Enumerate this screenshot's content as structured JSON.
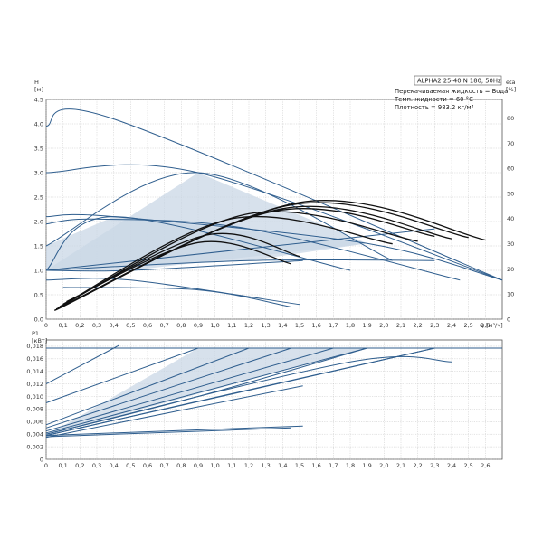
{
  "chart_data": [
    {
      "type": "line",
      "panel": "head",
      "ylabel": "H",
      "yunit": "[м]",
      "y2label": "eta",
      "y2unit": "[%]",
      "xlabel": "Q",
      "xunit": "[м³/ч]",
      "ylim": [
        0,
        4.5
      ],
      "y2lim": [
        0,
        87.5
      ],
      "xlim": [
        0,
        2.7
      ],
      "xticks": [
        0,
        0.1,
        0.2,
        0.3,
        0.4,
        0.5,
        0.6,
        0.7,
        0.8,
        0.9,
        1.0,
        1.1,
        1.2,
        1.3,
        1.4,
        1.5,
        1.6,
        1.7,
        1.8,
        1.9,
        2.0,
        2.1,
        2.2,
        2.3,
        2.4,
        2.5,
        2.6
      ],
      "xtick_labels": [
        "0",
        "0,1",
        "0,2",
        "0,3",
        "0,4",
        "0,5",
        "0,6",
        "0,7",
        "0,8",
        "0,9",
        "1,0",
        "1,1",
        "1,2",
        "1,3",
        "1,4",
        "1,5",
        "1,6",
        "1,7",
        "1,8",
        "1,9",
        "2,0",
        "2,1",
        "2,2",
        "2,3",
        "2,4",
        "2,5",
        "2,6"
      ],
      "yticks": [
        0,
        0.5,
        1.0,
        1.5,
        2.0,
        2.5,
        3.0,
        3.5,
        4.0,
        4.5
      ],
      "ytick_labels": [
        "0.0",
        "0.5",
        "1.0",
        "1.5",
        "2.0",
        "2.5",
        "3.0",
        "3.5",
        "4.0",
        "4.5"
      ],
      "y2ticks": [
        0,
        10,
        20,
        30,
        40,
        50,
        60,
        70,
        80
      ],
      "y2tick_labels": [
        "0",
        "10",
        "20",
        "30",
        "40",
        "50",
        "60",
        "70",
        "80"
      ],
      "grid": true,
      "info_box": {
        "title": "ALPHA2 25-40 N 180, 50Hz",
        "lines": [
          "Перекачиваемая жидкость = Вода",
          "Темп. жидкости = 60 °C",
          "Плотность = 983.2 кг/м³"
        ]
      },
      "shaded_regions": [
        {
          "x": [
            0,
            0.9,
            1.9,
            1.2,
            0
          ],
          "y": [
            1.0,
            3.0,
            1.55,
            1.2,
            1.0
          ]
        },
        {
          "x": [
            0,
            0.4,
            1.9,
            0.5,
            0
          ],
          "y": [
            1.5,
            2.1,
            1.55,
            1.0,
            1.0
          ]
        }
      ],
      "head_curves": [
        {
          "x": [
            0,
            0.4,
            2.7
          ],
          "y": [
            3.95,
            4.1,
            0.8
          ]
        },
        {
          "x": [
            0,
            0.9,
            2.7
          ],
          "y": [
            3.0,
            3.0,
            0.8
          ]
        },
        {
          "x": [
            0,
            0.4,
            1.9,
            2.7
          ],
          "y": [
            2.1,
            2.1,
            1.55,
            0.8
          ]
        },
        {
          "x": [
            0,
            0.3,
            1.2,
            2.45
          ],
          "y": [
            1.95,
            2.05,
            1.85,
            0.8
          ]
        },
        {
          "x": [
            0,
            0.9,
            2.05
          ],
          "y": [
            1.5,
            3.0,
            1.2
          ]
        },
        {
          "x": [
            0,
            0.4,
            1.8
          ],
          "y": [
            1.0,
            2.1,
            1.0
          ]
        },
        {
          "x": [
            0,
            1.2,
            2.3
          ],
          "y": [
            1.0,
            1.2,
            1.2
          ]
        },
        {
          "x": [
            0,
            2.3
          ],
          "y": [
            1.0,
            1.85
          ]
        },
        {
          "x": [
            0,
            0.5,
            1.52
          ],
          "y": [
            1.0,
            1.0,
            1.2
          ]
        },
        {
          "x": [
            0,
            0.5,
            1.5
          ],
          "y": [
            0.8,
            0.8,
            0.3
          ]
        },
        {
          "x": [
            0.1,
            0.9,
            1.45
          ],
          "y": [
            0.65,
            0.6,
            0.25
          ]
        }
      ],
      "efficiency_curves": [
        {
          "x": [
            0.05,
            1.5,
            2.6
          ],
          "y": [
            3.5,
            46.5,
            31.5
          ]
        },
        {
          "x": [
            0.05,
            1.45,
            2.5
          ],
          "y": [
            3.5,
            45.5,
            32.5
          ]
        },
        {
          "x": [
            0.06,
            1.4,
            2.4
          ],
          "y": [
            4,
            44,
            32
          ]
        },
        {
          "x": [
            0.06,
            1.35,
            2.3
          ],
          "y": [
            4,
            43,
            33
          ]
        },
        {
          "x": [
            0.07,
            1.2,
            2.2
          ],
          "y": [
            4.5,
            42,
            31
          ]
        },
        {
          "x": [
            0.08,
            1.1,
            2.05
          ],
          "y": [
            5,
            40,
            30
          ]
        },
        {
          "x": [
            0.1,
            0.95,
            1.5
          ],
          "y": [
            6,
            33.5,
            25
          ]
        },
        {
          "x": [
            0.12,
            0.9,
            1.45
          ],
          "y": [
            7,
            30.5,
            22
          ]
        }
      ]
    },
    {
      "type": "line",
      "panel": "power",
      "ylabel": "P1",
      "yunit": "[кВт]",
      "ylim": [
        0,
        0.019
      ],
      "xlim": [
        0,
        2.7
      ],
      "xticks": [
        0,
        0.1,
        0.2,
        0.3,
        0.4,
        0.5,
        0.6,
        0.7,
        0.8,
        0.9,
        1.0,
        1.1,
        1.2,
        1.3,
        1.4,
        1.5,
        1.6,
        1.7,
        1.8,
        1.9,
        2.0,
        2.1,
        2.2,
        2.3,
        2.4,
        2.5,
        2.6
      ],
      "xtick_labels": [
        "0",
        "0,1",
        "0,2",
        "0,3",
        "0,4",
        "0,5",
        "0,6",
        "0,7",
        "0,8",
        "0,9",
        "1,0",
        "1,1",
        "1,2",
        "1,3",
        "1,4",
        "1,5",
        "1,6",
        "1,7",
        "1,8",
        "1,9",
        "2,0",
        "2,1",
        "2,2",
        "2,3",
        "2,4",
        "2,5",
        "2,6"
      ],
      "yticks": [
        0,
        0.002,
        0.004,
        0.006,
        0.008,
        0.01,
        0.012,
        0.014,
        0.016,
        0.018
      ],
      "ytick_labels": [
        "0",
        "0,002",
        "0,004",
        "0,006",
        "0,008",
        "0,010",
        "0,012",
        "0,014",
        "0,016",
        "0,018"
      ],
      "grid": true,
      "shaded_regions": [
        {
          "x": [
            0,
            0.9,
            1.9,
            0.5,
            0
          ],
          "y": [
            0.0038,
            0.0177,
            0.0177,
            0.0075,
            0.0038
          ]
        }
      ],
      "power_curves": [
        {
          "x": [
            0,
            2.7
          ],
          "y": [
            0.0177,
            0.0177
          ]
        },
        {
          "x": [
            0,
            0.4,
            0.4
          ],
          "y": [
            0.012,
            0.0177,
            0.0177
          ]
        },
        {
          "x": [
            0,
            0.9
          ],
          "y": [
            0.009,
            0.0177
          ]
        },
        {
          "x": [
            0,
            1.2
          ],
          "y": [
            0.0055,
            0.0177
          ]
        },
        {
          "x": [
            0,
            1.45
          ],
          "y": [
            0.005,
            0.0177
          ]
        },
        {
          "x": [
            0,
            1.7
          ],
          "y": [
            0.0045,
            0.0177
          ]
        },
        {
          "x": [
            0,
            1.9
          ],
          "y": [
            0.0042,
            0.0177
          ]
        },
        {
          "x": [
            0,
            2.3
          ],
          "y": [
            0.0038,
            0.0177
          ]
        },
        {
          "x": [
            0,
            0.9,
            1.9
          ],
          "y": [
            0.004,
            0.01,
            0.0177
          ]
        },
        {
          "x": [
            0,
            1.8,
            2.4
          ],
          "y": [
            0.004,
            0.0155,
            0.0155
          ]
        },
        {
          "x": [
            0,
            1.2,
            2.3
          ],
          "y": [
            0.0038,
            0.011,
            0.0177
          ]
        },
        {
          "x": [
            0,
            1.52
          ],
          "y": [
            0.0035,
            0.0117
          ]
        },
        {
          "x": [
            0,
            1.52
          ],
          "y": [
            0.0038,
            0.0053
          ]
        },
        {
          "x": [
            0,
            1.45
          ],
          "y": [
            0.0036,
            0.005
          ]
        }
      ]
    }
  ],
  "colors": {
    "curve": "#2f5e8e",
    "efficiency": "#111111",
    "region_fill": "#c9d7e6",
    "grid": "#b9b9b9",
    "frame": "#555555"
  }
}
